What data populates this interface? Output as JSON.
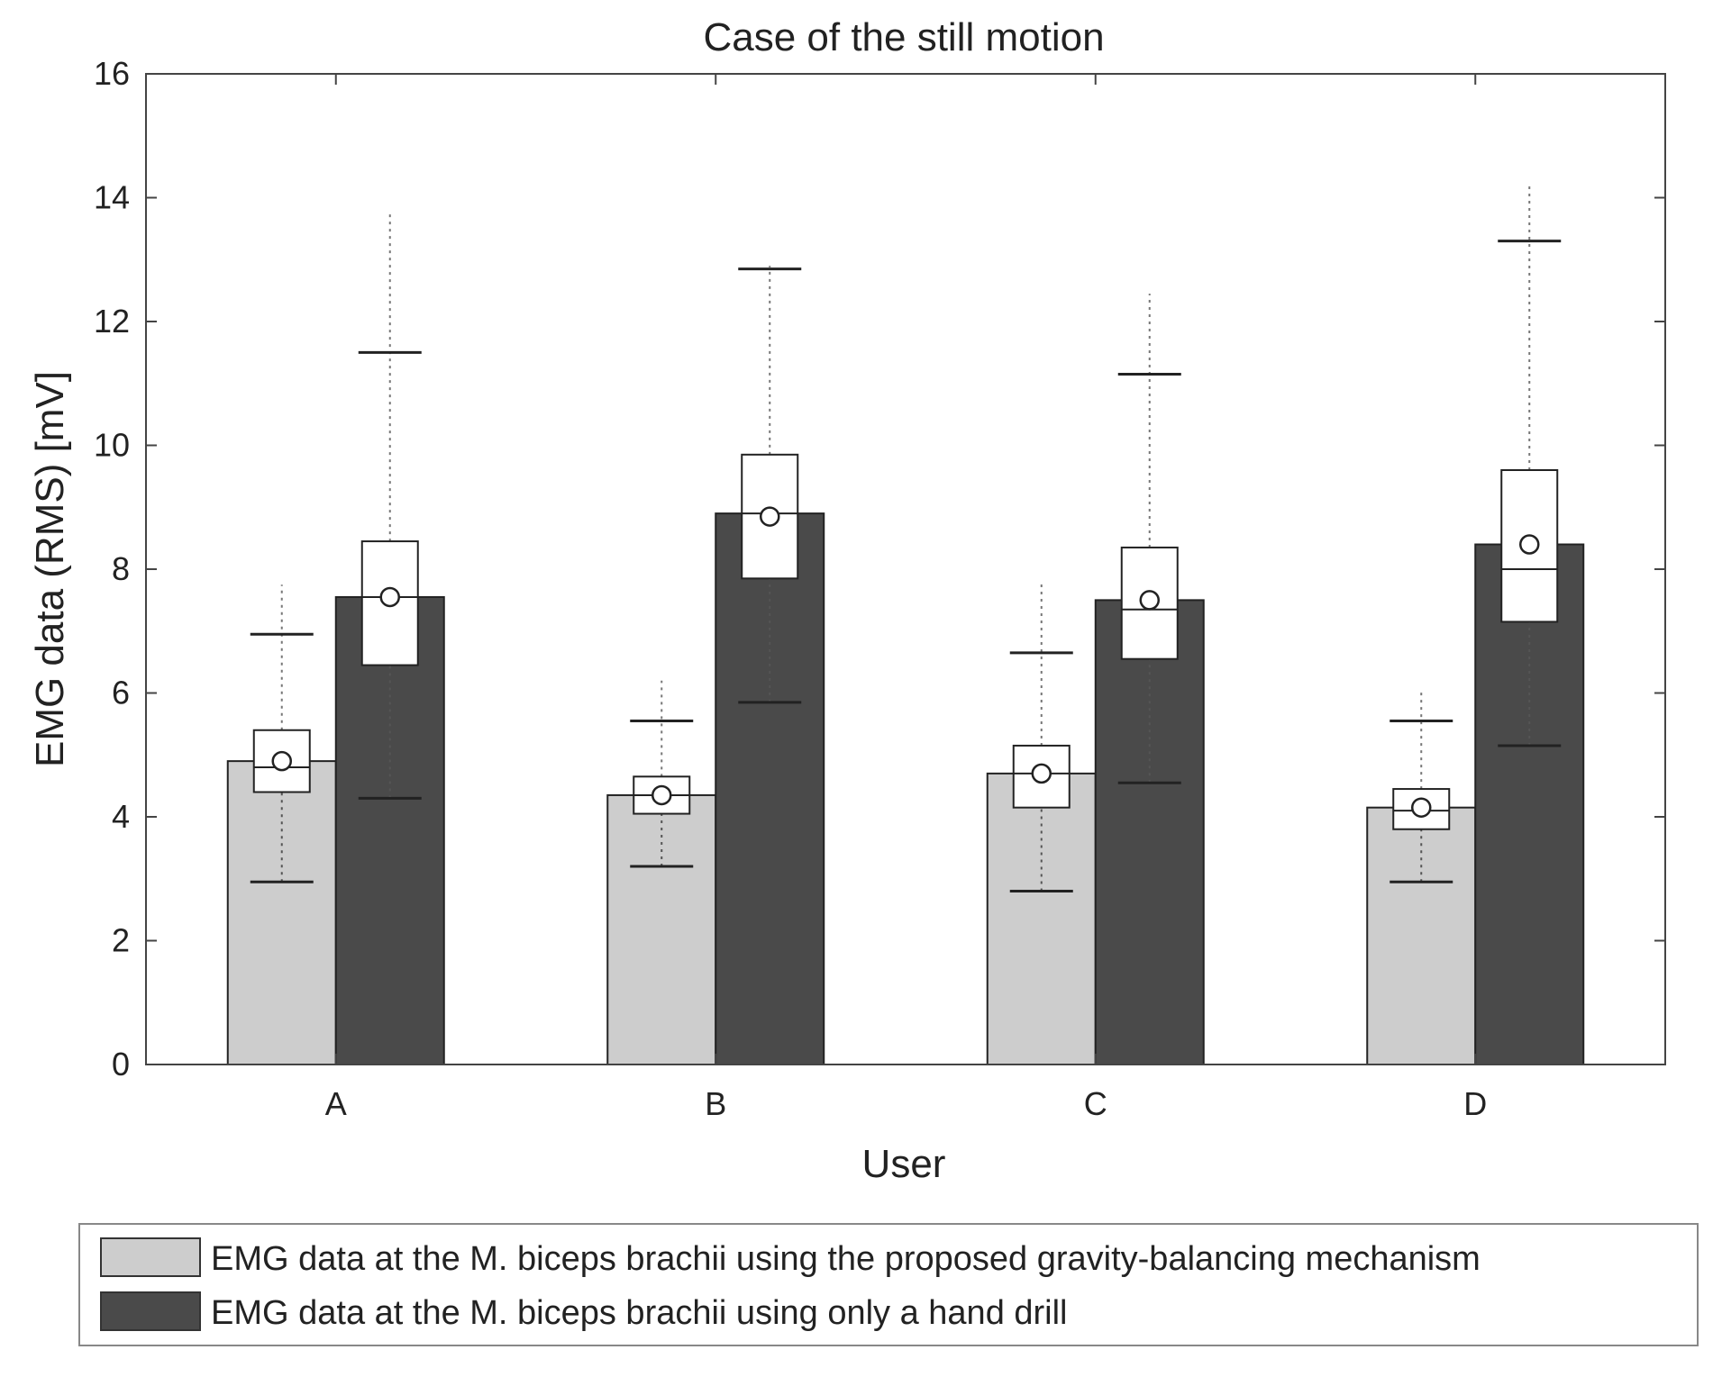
{
  "chart_data": {
    "type": "bar",
    "title": "Case of the still motion",
    "xlabel": "User",
    "ylabel": "EMG data (RMS) [mV]",
    "ylim": [
      0,
      16
    ],
    "yticks": [
      "0",
      "2",
      "4",
      "6",
      "8",
      "10",
      "12",
      "14",
      "16"
    ],
    "categories": [
      "A",
      "B",
      "C",
      "D"
    ],
    "legend_position": "bottom",
    "series": [
      {
        "name": "EMG data at the M. biceps brachii using the proposed gravity-balancing mechanism",
        "color": "#cdcdcd",
        "values": [
          4.9,
          4.35,
          4.7,
          4.15
        ],
        "box": [
          {
            "q1": 4.4,
            "median": 4.8,
            "q3": 5.4,
            "mean": 4.9,
            "whisker_low": 2.95,
            "whisker_high": 6.95,
            "outlier_max": 7.75
          },
          {
            "q1": 4.05,
            "median": 4.35,
            "q3": 4.65,
            "mean": 4.35,
            "whisker_low": 3.2,
            "whisker_high": 5.55,
            "outlier_max": 6.2
          },
          {
            "q1": 4.15,
            "median": 4.7,
            "q3": 5.15,
            "mean": 4.7,
            "whisker_low": 2.8,
            "whisker_high": 6.65,
            "outlier_max": 7.8
          },
          {
            "q1": 3.8,
            "median": 4.1,
            "q3": 4.45,
            "mean": 4.15,
            "whisker_low": 2.95,
            "whisker_high": 5.55,
            "outlier_max": 6.05
          }
        ]
      },
      {
        "name": "EMG data at the M. biceps brachii using only a hand drill",
        "color": "#4a4a4a",
        "values": [
          7.55,
          8.9,
          7.5,
          8.4
        ],
        "box": [
          {
            "q1": 6.45,
            "median": 7.55,
            "q3": 8.45,
            "mean": 7.55,
            "whisker_low": 4.3,
            "whisker_high": 11.5,
            "outlier_max": 13.8
          },
          {
            "q1": 7.85,
            "median": 8.9,
            "q3": 9.85,
            "mean": 8.85,
            "whisker_low": 5.85,
            "whisker_high": 12.85,
            "outlier_max": 12.9
          },
          {
            "q1": 6.55,
            "median": 7.35,
            "q3": 8.35,
            "mean": 7.5,
            "whisker_low": 4.55,
            "whisker_high": 11.15,
            "outlier_max": 12.45
          },
          {
            "q1": 7.15,
            "median": 8.0,
            "q3": 9.6,
            "mean": 8.4,
            "whisker_low": 5.15,
            "whisker_high": 13.3,
            "outlier_max": 14.25
          }
        ]
      }
    ]
  }
}
